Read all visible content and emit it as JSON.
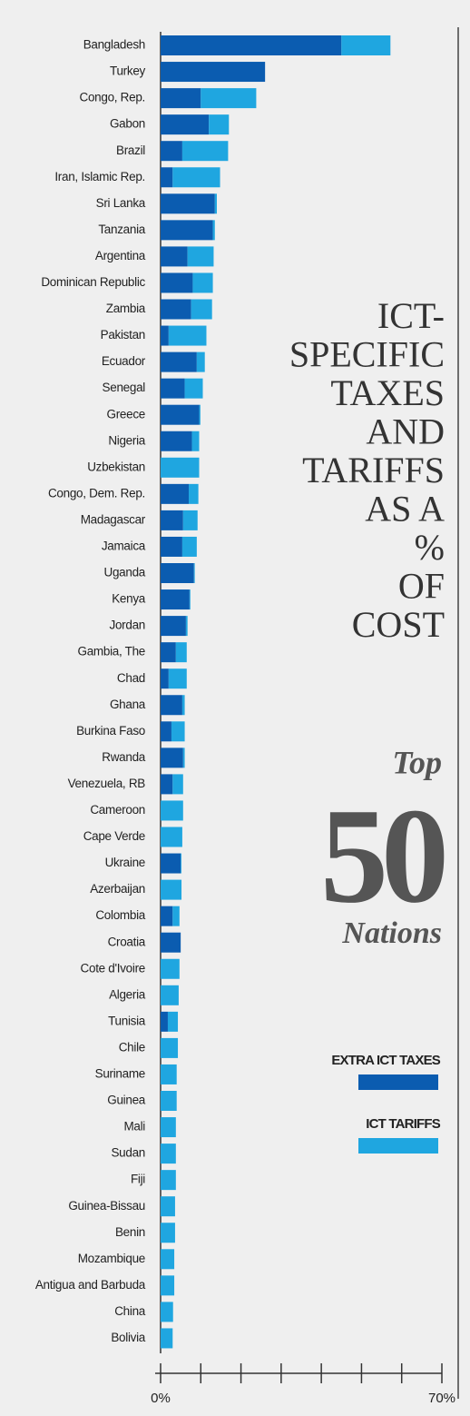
{
  "chart_data": {
    "type": "stacked_barh",
    "title_lines": [
      "ICT-",
      "SPECIFIC",
      "TAXES",
      "AND",
      "TARIFFS",
      "AS A",
      "%",
      "OF",
      "COST"
    ],
    "subtitle_lines": [
      "Top",
      "50",
      "Nations"
    ],
    "categories": [
      "Bangladesh",
      "Turkey",
      "Congo, Rep.",
      "Gabon",
      "Brazil",
      "Iran, Islamic Rep.",
      "Sri Lanka",
      "Tanzania",
      "Argentina",
      "Dominican Republic",
      "Zambia",
      "Pakistan",
      "Ecuador",
      "Senegal",
      "Greece",
      "Nigeria",
      "Uzbekistan",
      "Congo, Dem. Rep.",
      "Madagascar",
      "Jamaica",
      "Uganda",
      "Kenya",
      "Jordan",
      "Gambia, The",
      "Chad",
      "Ghana",
      "Burkina Faso",
      "Rwanda",
      "Venezuela, RB",
      "Cameroon",
      "Cape Verde",
      "Ukraine",
      "Azerbaijan",
      "Colombia",
      "Croatia",
      "Cote d'Ivoire",
      "Algeria",
      "Tunisia",
      "Chile",
      "Suriname",
      "Guinea",
      "Mali",
      "Sudan",
      "Fiji",
      "Guinea-Bissau",
      "Benin",
      "Mozambique",
      "Antigua and Barbuda",
      "China",
      "Bolivia"
    ],
    "series": [
      {
        "name": "EXTRA ICT TAXES",
        "color": "#0b5cb0",
        "values": [
          45,
          26,
          10,
          12,
          5.4,
          3,
          13.5,
          13,
          6.7,
          8,
          7.6,
          2,
          9,
          6,
          9.6,
          7.8,
          0,
          7,
          5.6,
          5.4,
          8.3,
          7.2,
          6.3,
          3.8,
          2,
          5.4,
          2.7,
          5.6,
          3,
          0,
          0,
          5,
          0,
          3,
          5,
          0,
          0,
          1.8,
          0,
          0,
          0,
          0,
          0,
          0,
          0,
          0,
          0,
          0,
          0,
          0
        ]
      },
      {
        "name": "ICT TARIFFS",
        "color": "#1fa6e0",
        "values": [
          12.2,
          0,
          13.8,
          5,
          11.4,
          11.8,
          0.5,
          0.5,
          6.5,
          5,
          5.2,
          9.4,
          2,
          4.5,
          0.3,
          1.8,
          9.6,
          2.4,
          3.6,
          3.6,
          0.2,
          0.2,
          0.4,
          2.7,
          4.5,
          0.6,
          3.3,
          0.4,
          2.6,
          5.6,
          5.4,
          0.2,
          5.2,
          1.7,
          0,
          4.7,
          4.5,
          2.5,
          4.3,
          4,
          4,
          3.8,
          3.8,
          3.8,
          3.6,
          3.6,
          3.4,
          3.4,
          3.1,
          3
        ]
      }
    ],
    "xlim": [
      0,
      70
    ],
    "xticks": [
      {
        "value": 0,
        "label": "0%"
      },
      {
        "value": 70,
        "label": "70%"
      }
    ],
    "xtick_marks": [
      0,
      10,
      20,
      30,
      40,
      50,
      60,
      70
    ]
  }
}
